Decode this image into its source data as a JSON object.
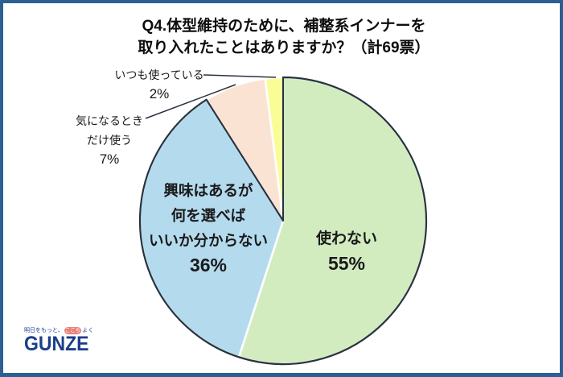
{
  "frame": {
    "border_color": "#2c5f92",
    "background": "#ffffff"
  },
  "title": {
    "line1": "Q4.体型維持のために、補整系インナーを",
    "line2": "取り入れたことはありますか？（計69票）"
  },
  "chart_data": {
    "type": "pie",
    "title": "Q4.体型維持のために、補整系インナーを取り入れたことはありますか？（計69票）",
    "total_votes": 69,
    "start_angle_deg": 0,
    "direction": "clockwise",
    "outline_color": "#28333f",
    "slices": [
      {
        "label": "使わない",
        "pct": 55,
        "color": "#d2ecc0",
        "dark_outline": true,
        "label_pos": "inside",
        "label_lines": [
          "使わない",
          "55%"
        ]
      },
      {
        "label": "興味はあるが何を選べばいいか分からない",
        "pct": 36,
        "color": "#b4daee",
        "dark_outline": true,
        "label_pos": "inside",
        "label_lines": [
          "興味はあるが",
          "何を選べば",
          "いいか分からない",
          "36%"
        ]
      },
      {
        "label": "気になるときだけ使う",
        "pct": 7,
        "color": "#fbe3d3",
        "dark_outline": false,
        "label_pos": "outside",
        "label_lines": [
          "気になるとき",
          "だけ使う",
          "7%"
        ]
      },
      {
        "label": "いつも使っている",
        "pct": 2,
        "color": "#fafd96",
        "dark_outline": false,
        "label_pos": "outside",
        "label_lines": [
          "いつも使っている",
          "2%"
        ]
      }
    ]
  },
  "logo": {
    "tagline_prefix": "明日をもっと、",
    "tagline_highlight": "ここち",
    "tagline_suffix": "よく",
    "brand": "GUNZE",
    "brand_color": "#1b3d8a",
    "highlight_bg": "#e8837a"
  }
}
